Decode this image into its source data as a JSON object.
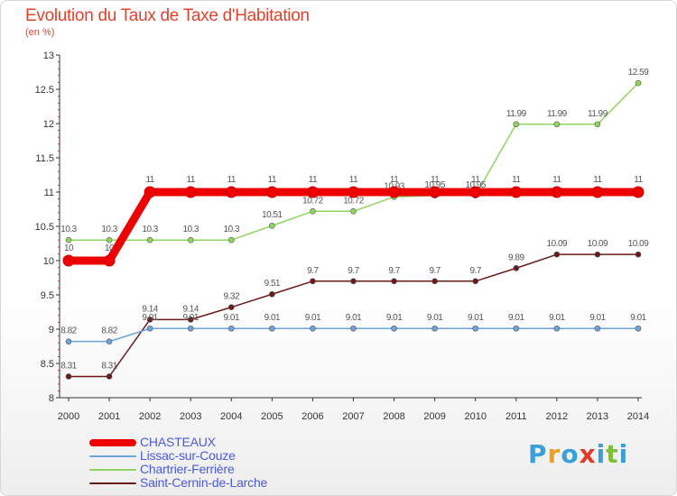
{
  "chart_data": {
    "type": "line",
    "title": "Evolution du Taux de Taxe d'Habitation",
    "ylabel": "(en %)",
    "ylim": [
      8,
      13
    ],
    "yticks": [
      "8",
      "8.5",
      "9",
      "9.5",
      "10",
      "10.5",
      "11",
      "11.5",
      "12",
      "12.5",
      "13"
    ],
    "grid": false,
    "x": [
      "2000",
      "2001",
      "2002",
      "2003",
      "2004",
      "2005",
      "2006",
      "2007",
      "2008",
      "2009",
      "2010",
      "2011",
      "2012",
      "2013",
      "2014"
    ],
    "series": [
      {
        "name": "Saint-Cernin-de-Larche",
        "color": "#6b1a1a",
        "values": [
          8.31,
          8.31,
          9.14,
          9.14,
          9.32,
          9.51,
          9.7,
          9.7,
          9.7,
          9.7,
          9.7,
          9.89,
          10.09,
          10.09,
          10.09
        ],
        "labels": [
          "8.31",
          "8.31",
          "9.14",
          "9.14",
          "9.32",
          "9.51",
          "9.7",
          "9.7",
          "9.7",
          "9.7",
          "9.7",
          "9.89",
          "10.09",
          "10.09",
          "10.09"
        ]
      },
      {
        "name": "Lissac-sur-Couze",
        "color": "#6fa3d8",
        "values": [
          8.82,
          8.82,
          9.01,
          9.01,
          9.01,
          9.01,
          9.01,
          9.01,
          9.01,
          9.01,
          9.01,
          9.01,
          9.01,
          9.01,
          9.01
        ],
        "labels": [
          "8.82",
          "8.82",
          "9.01",
          "9.01",
          "9.01",
          "9.01",
          "9.01",
          "9.01",
          "9.01",
          "9.01",
          "9.01",
          "9.01",
          "9.01",
          "9.01",
          "9.01"
        ]
      },
      {
        "name": "Chartrier-Ferrière",
        "color": "#8fd65f",
        "values": [
          10.3,
          10.3,
          10.3,
          10.3,
          10.3,
          10.51,
          10.72,
          10.72,
          10.93,
          10.95,
          10.95,
          11.99,
          11.99,
          11.99,
          12.59
        ],
        "labels": [
          "10.3",
          "10.3",
          "10.3",
          "10.3",
          "10.3",
          "10.51",
          "10.72",
          "10.72",
          "10.93",
          "10.95",
          "10.95",
          "11.99",
          "11.99",
          "11.99",
          "12.59"
        ]
      },
      {
        "name": "CHASTEAUX",
        "color": "#ee0000",
        "values": [
          10,
          10,
          11,
          11,
          11,
          11,
          11,
          11,
          11,
          11,
          11,
          11,
          11,
          11,
          11
        ],
        "labels": [
          "10",
          "10",
          "11",
          "11",
          "11",
          "11",
          "11",
          "11",
          "11",
          "11",
          "11",
          "11",
          "11",
          "11",
          "11"
        ]
      }
    ],
    "legend": [
      {
        "name": "CHASTEAUX",
        "color": "#ee0000"
      },
      {
        "name": "Lissac-sur-Couze",
        "color": "#6fa3d8"
      },
      {
        "name": "Chartrier-Ferrière",
        "color": "#8fd65f"
      },
      {
        "name": "Saint-Cernin-de-Larche",
        "color": "#6b1a1a"
      }
    ],
    "legend_placement": "bottom-left"
  },
  "brand": {
    "letters": [
      "P",
      "r",
      "o",
      "x",
      "i",
      "t",
      "i"
    ],
    "colors": [
      "#3aa0d8",
      "#f0a020",
      "#3aa0d8",
      "#e03a2a",
      "#3aa0d8",
      "#7cbf3a",
      "#3aa0d8"
    ]
  }
}
